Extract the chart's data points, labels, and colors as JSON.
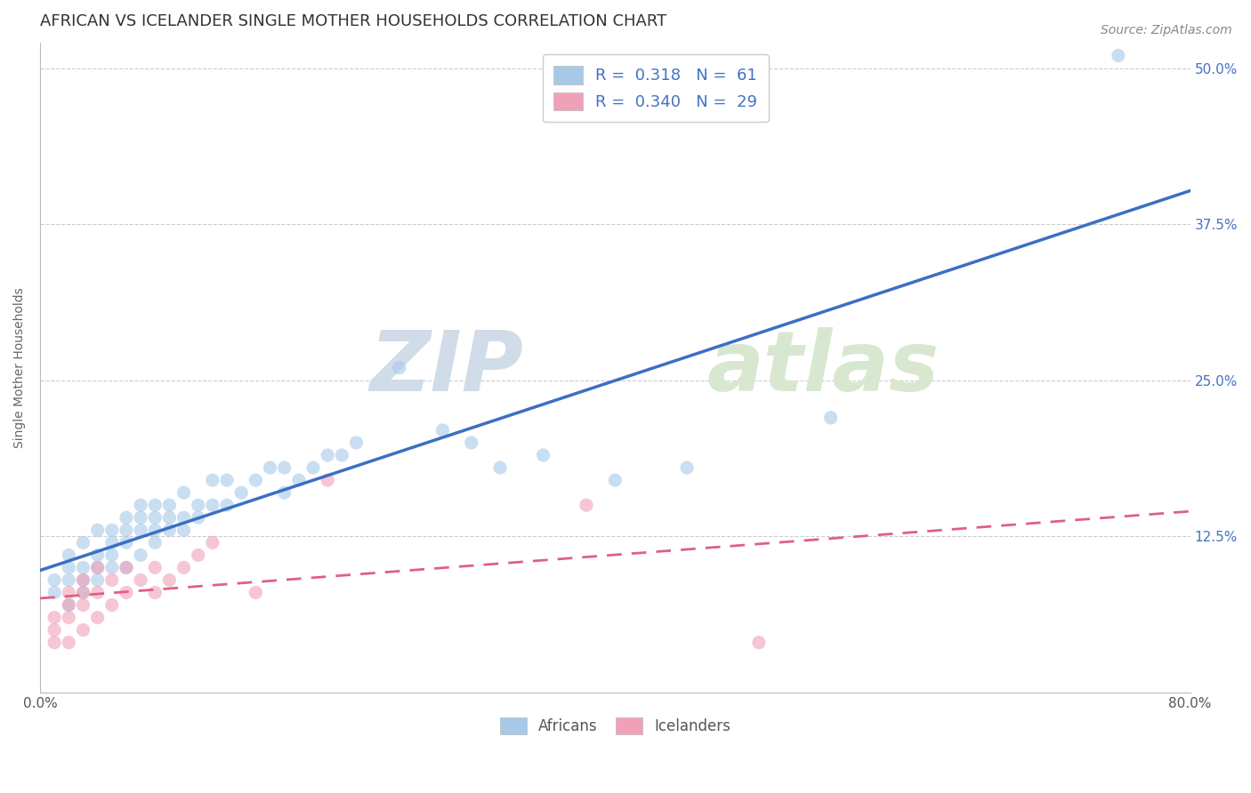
{
  "title": "AFRICAN VS ICELANDER SINGLE MOTHER HOUSEHOLDS CORRELATION CHART",
  "source_text": "Source: ZipAtlas.com",
  "xlabel": "",
  "ylabel": "Single Mother Households",
  "watermark_zip": "ZIP",
  "watermark_atlas": "atlas",
  "xlim": [
    0.0,
    0.8
  ],
  "ylim": [
    0.0,
    0.52
  ],
  "xticks": [
    0.0,
    0.1,
    0.2,
    0.3,
    0.4,
    0.5,
    0.6,
    0.7,
    0.8
  ],
  "xticklabels": [
    "0.0%",
    "",
    "",
    "",
    "",
    "",
    "",
    "",
    "80.0%"
  ],
  "yticks": [
    0.0,
    0.125,
    0.25,
    0.375,
    0.5
  ],
  "yticklabels_left": [
    "",
    "",
    "",
    "",
    ""
  ],
  "yticklabels_right": [
    "",
    "12.5%",
    "25.0%",
    "37.5%",
    "50.0%"
  ],
  "african_color": "#a8c8e8",
  "icelander_color": "#f0a0b8",
  "african_line_color": "#3a6fc4",
  "icelander_line_color": "#e06080",
  "legend_R_african": "0.318",
  "legend_N_african": "61",
  "legend_R_icelander": "0.340",
  "legend_N_icelander": "29",
  "african_scatter": [
    [
      0.01,
      0.08
    ],
    [
      0.01,
      0.09
    ],
    [
      0.02,
      0.07
    ],
    [
      0.02,
      0.09
    ],
    [
      0.02,
      0.1
    ],
    [
      0.02,
      0.11
    ],
    [
      0.03,
      0.08
    ],
    [
      0.03,
      0.09
    ],
    [
      0.03,
      0.1
    ],
    [
      0.03,
      0.12
    ],
    [
      0.04,
      0.09
    ],
    [
      0.04,
      0.1
    ],
    [
      0.04,
      0.11
    ],
    [
      0.04,
      0.13
    ],
    [
      0.05,
      0.1
    ],
    [
      0.05,
      0.11
    ],
    [
      0.05,
      0.12
    ],
    [
      0.05,
      0.13
    ],
    [
      0.06,
      0.1
    ],
    [
      0.06,
      0.12
    ],
    [
      0.06,
      0.13
    ],
    [
      0.06,
      0.14
    ],
    [
      0.07,
      0.11
    ],
    [
      0.07,
      0.13
    ],
    [
      0.07,
      0.14
    ],
    [
      0.07,
      0.15
    ],
    [
      0.08,
      0.12
    ],
    [
      0.08,
      0.13
    ],
    [
      0.08,
      0.14
    ],
    [
      0.08,
      0.15
    ],
    [
      0.09,
      0.13
    ],
    [
      0.09,
      0.14
    ],
    [
      0.09,
      0.15
    ],
    [
      0.1,
      0.13
    ],
    [
      0.1,
      0.14
    ],
    [
      0.1,
      0.16
    ],
    [
      0.11,
      0.14
    ],
    [
      0.11,
      0.15
    ],
    [
      0.12,
      0.15
    ],
    [
      0.12,
      0.17
    ],
    [
      0.13,
      0.15
    ],
    [
      0.13,
      0.17
    ],
    [
      0.14,
      0.16
    ],
    [
      0.15,
      0.17
    ],
    [
      0.16,
      0.18
    ],
    [
      0.17,
      0.16
    ],
    [
      0.17,
      0.18
    ],
    [
      0.18,
      0.17
    ],
    [
      0.19,
      0.18
    ],
    [
      0.2,
      0.19
    ],
    [
      0.21,
      0.19
    ],
    [
      0.22,
      0.2
    ],
    [
      0.25,
      0.26
    ],
    [
      0.28,
      0.21
    ],
    [
      0.3,
      0.2
    ],
    [
      0.32,
      0.18
    ],
    [
      0.35,
      0.19
    ],
    [
      0.4,
      0.17
    ],
    [
      0.45,
      0.18
    ],
    [
      0.55,
      0.22
    ],
    [
      0.75,
      0.51
    ]
  ],
  "icelander_scatter": [
    [
      0.01,
      0.04
    ],
    [
      0.01,
      0.05
    ],
    [
      0.01,
      0.06
    ],
    [
      0.02,
      0.04
    ],
    [
      0.02,
      0.06
    ],
    [
      0.02,
      0.07
    ],
    [
      0.02,
      0.08
    ],
    [
      0.03,
      0.05
    ],
    [
      0.03,
      0.07
    ],
    [
      0.03,
      0.08
    ],
    [
      0.03,
      0.09
    ],
    [
      0.04,
      0.06
    ],
    [
      0.04,
      0.08
    ],
    [
      0.04,
      0.1
    ],
    [
      0.05,
      0.07
    ],
    [
      0.05,
      0.09
    ],
    [
      0.06,
      0.08
    ],
    [
      0.06,
      0.1
    ],
    [
      0.07,
      0.09
    ],
    [
      0.08,
      0.08
    ],
    [
      0.08,
      0.1
    ],
    [
      0.09,
      0.09
    ],
    [
      0.1,
      0.1
    ],
    [
      0.11,
      0.11
    ],
    [
      0.12,
      0.12
    ],
    [
      0.15,
      0.08
    ],
    [
      0.2,
      0.17
    ],
    [
      0.38,
      0.15
    ],
    [
      0.5,
      0.04
    ]
  ],
  "title_fontsize": 13,
  "axis_label_fontsize": 10,
  "tick_fontsize": 11,
  "source_fontsize": 10,
  "background_color": "#ffffff",
  "grid_color": "#cccccc",
  "right_tick_color": "#4472c4",
  "scatter_size": 120,
  "scatter_alpha": 0.6
}
